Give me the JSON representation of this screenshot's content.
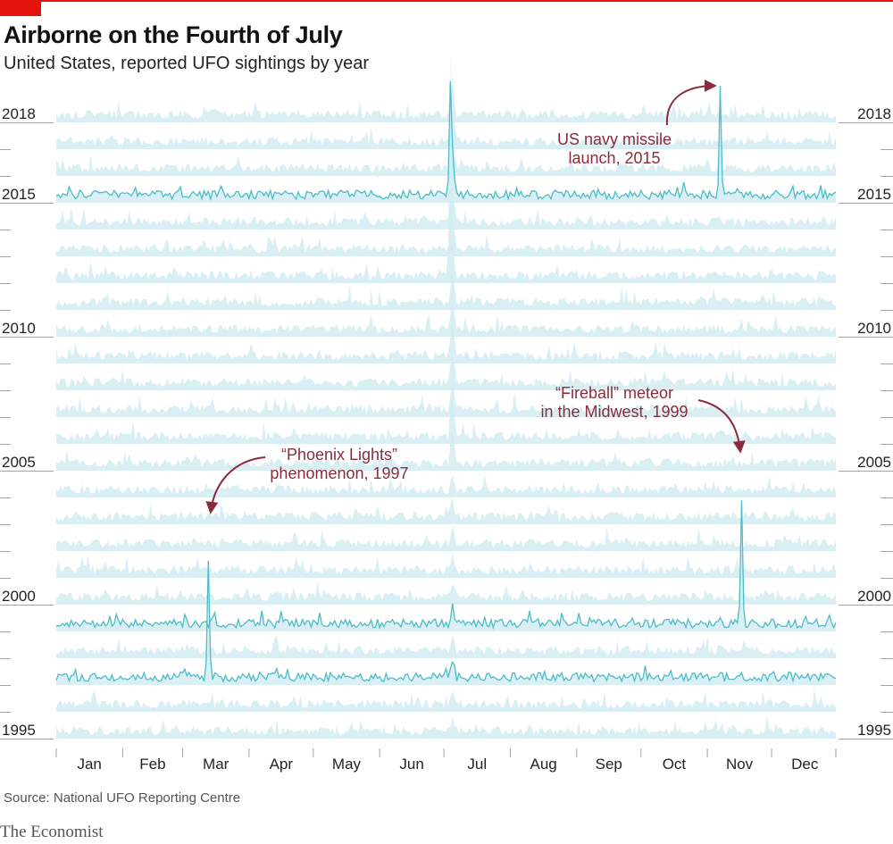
{
  "header": {
    "title": "Airborne on the Fourth of July",
    "subtitle": "United States, reported UFO sightings by year"
  },
  "footer": {
    "source": "Source: National UFO Reporting Centre",
    "brand": "The Economist"
  },
  "colors": {
    "accent": "#e3120b",
    "fill": "#d3ecf1",
    "highlight_line": "#4cbcc8",
    "annotation": "#8b2b3c",
    "axis": "#9aa6b2"
  },
  "chart_data": {
    "type": "area",
    "title": "Airborne on the Fourth of July",
    "subtitle": "United States, reported UFO sightings by year",
    "xlabel": "",
    "ylabel": "",
    "x_ticks": [
      "Jan",
      "Feb",
      "Mar",
      "Apr",
      "May",
      "Jun",
      "Jul",
      "Aug",
      "Sep",
      "Oct",
      "Nov",
      "Dec"
    ],
    "y_ticks": [
      "2018",
      "2015",
      "2010",
      "2005",
      "2000",
      "1995"
    ],
    "years": [
      2018,
      2017,
      2016,
      2015,
      2014,
      2013,
      2012,
      2011,
      2010,
      2009,
      2008,
      2007,
      2006,
      2005,
      2004,
      2003,
      2002,
      2001,
      2000,
      1999,
      1998,
      1997,
      1996,
      1995
    ],
    "highlighted_years": [
      2015,
      1999,
      1997
    ],
    "series_profile": "ridgeline of daily sighting counts per year, Jan 1 to Dec 31",
    "peaks": [
      {
        "year": 2015,
        "month": "Jul",
        "day": 4,
        "relative": 0.9
      },
      {
        "year": 2015,
        "month": "Nov",
        "day": 7,
        "relative": 1.0
      },
      {
        "year": 1999,
        "month": "Nov",
        "day": 17,
        "relative": 1.0
      },
      {
        "year": 1997,
        "month": "Mar",
        "day": 13,
        "relative": 1.0
      },
      {
        "year": 2012,
        "month": "Jul",
        "day": 4,
        "relative": 1.0
      }
    ],
    "annotations": [
      {
        "lines": [
          "US navy missile",
          "launch, 2015"
        ],
        "year": 2015,
        "month": "Nov"
      },
      {
        "lines": [
          "“Fireball” meteor",
          "in the Midwest, 1999"
        ],
        "year": 1999,
        "month": "Nov"
      },
      {
        "lines": [
          "“Phoenix Lights”",
          "phenomenon, 1997"
        ],
        "year": 1997,
        "month": "Mar"
      }
    ],
    "grid": false,
    "legend": "none"
  }
}
